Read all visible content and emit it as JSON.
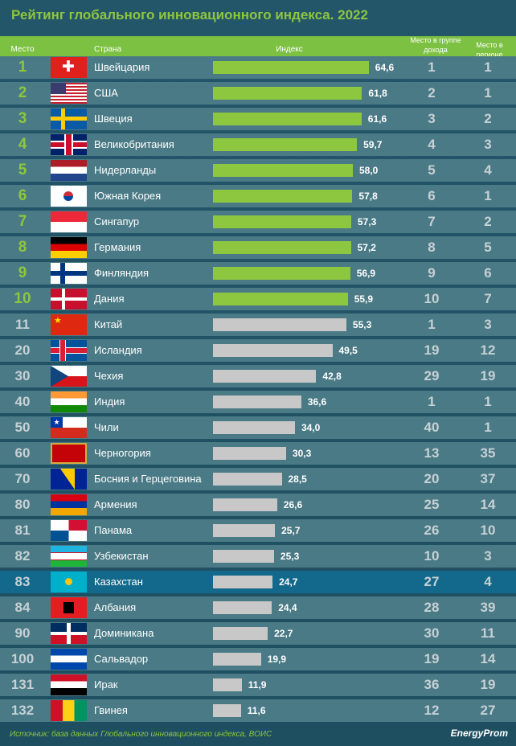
{
  "title": "Рейтинг глобального инновационного индекса. 2022",
  "header": {
    "rank": "Место",
    "country": "Страна",
    "index": "Индекс",
    "income": "Место в группе дохода",
    "region": "Место в регионе"
  },
  "colors": {
    "accent": "#8dc63f",
    "bar_gray": "#c8c8c8",
    "highlight": "#13698c"
  },
  "chart_data": {
    "type": "bar",
    "title": "Рейтинг глобального инновационного индекса. 2022",
    "xlim": [
      0,
      65
    ],
    "rows": [
      {
        "rank": "1",
        "flag": "ch",
        "country": "Швейцария",
        "value": 64.6,
        "label": "64,6",
        "income": "1",
        "region": "1"
      },
      {
        "rank": "2",
        "flag": "us",
        "country": "США",
        "value": 61.8,
        "label": "61,8",
        "income": "2",
        "region": "1"
      },
      {
        "rank": "3",
        "flag": "se",
        "country": "Швеция",
        "value": 61.6,
        "label": "61,6",
        "income": "3",
        "region": "2"
      },
      {
        "rank": "4",
        "flag": "gb",
        "country": "Великобритания",
        "value": 59.7,
        "label": "59,7",
        "income": "4",
        "region": "3"
      },
      {
        "rank": "5",
        "flag": "nl",
        "country": "Нидерланды",
        "value": 58.0,
        "label": "58,0",
        "income": "5",
        "region": "4"
      },
      {
        "rank": "6",
        "flag": "kr",
        "country": "Южная Корея",
        "value": 57.8,
        "label": "57,8",
        "income": "6",
        "region": "1"
      },
      {
        "rank": "7",
        "flag": "sg",
        "country": "Сингапур",
        "value": 57.3,
        "label": "57,3",
        "income": "7",
        "region": "2"
      },
      {
        "rank": "8",
        "flag": "de",
        "country": "Германия",
        "value": 57.2,
        "label": "57,2",
        "income": "8",
        "region": "5"
      },
      {
        "rank": "9",
        "flag": "fi",
        "country": "Финляндия",
        "value": 56.9,
        "label": "56,9",
        "income": "9",
        "region": "6"
      },
      {
        "rank": "10",
        "flag": "dk",
        "country": "Дания",
        "value": 55.9,
        "label": "55,9",
        "income": "10",
        "region": "7"
      },
      {
        "rank": "11",
        "flag": "cn",
        "country": "Китай",
        "value": 55.3,
        "label": "55,3",
        "income": "1",
        "region": "3"
      },
      {
        "rank": "20",
        "flag": "is",
        "country": "Исландия",
        "value": 49.5,
        "label": "49,5",
        "income": "19",
        "region": "12"
      },
      {
        "rank": "30",
        "flag": "cz",
        "country": "Чехия",
        "value": 42.8,
        "label": "42,8",
        "income": "29",
        "region": "19"
      },
      {
        "rank": "40",
        "flag": "in",
        "country": "Индия",
        "value": 36.6,
        "label": "36,6",
        "income": "1",
        "region": "1"
      },
      {
        "rank": "50",
        "flag": "cl",
        "country": "Чили",
        "value": 34.0,
        "label": "34,0",
        "income": "40",
        "region": "1"
      },
      {
        "rank": "60",
        "flag": "me",
        "country": "Черногория",
        "value": 30.3,
        "label": "30,3",
        "income": "13",
        "region": "35"
      },
      {
        "rank": "70",
        "flag": "ba",
        "country": "Босния и Герцеговина",
        "value": 28.5,
        "label": "28,5",
        "income": "20",
        "region": "37"
      },
      {
        "rank": "80",
        "flag": "am",
        "country": "Армения",
        "value": 26.6,
        "label": "26,6",
        "income": "25",
        "region": "14"
      },
      {
        "rank": "81",
        "flag": "pa",
        "country": "Панама",
        "value": 25.7,
        "label": "25,7",
        "income": "26",
        "region": "10"
      },
      {
        "rank": "82",
        "flag": "uz",
        "country": "Узбекистан",
        "value": 25.3,
        "label": "25,3",
        "income": "10",
        "region": "3"
      },
      {
        "rank": "83",
        "flag": "kz",
        "country": "Казахстан",
        "value": 24.7,
        "label": "24,7",
        "income": "27",
        "region": "4",
        "highlight": true
      },
      {
        "rank": "84",
        "flag": "al",
        "country": "Албания",
        "value": 24.4,
        "label": "24,4",
        "income": "28",
        "region": "39"
      },
      {
        "rank": "90",
        "flag": "do",
        "country": "Доминикана",
        "value": 22.7,
        "label": "22,7",
        "income": "30",
        "region": "11"
      },
      {
        "rank": "100",
        "flag": "sv",
        "country": "Сальвадор",
        "value": 19.9,
        "label": "19,9",
        "income": "19",
        "region": "14"
      },
      {
        "rank": "131",
        "flag": "iq",
        "country": "Ирак",
        "value": 11.9,
        "label": "11,9",
        "income": "36",
        "region": "19"
      },
      {
        "rank": "132",
        "flag": "gn",
        "country": "Гвинея",
        "value": 11.6,
        "label": "11,6",
        "income": "12",
        "region": "27"
      }
    ]
  },
  "footer": {
    "source": "Источник: база данных Глобального инновационного индекса, ВОИС",
    "logo": "EnergyProm"
  }
}
